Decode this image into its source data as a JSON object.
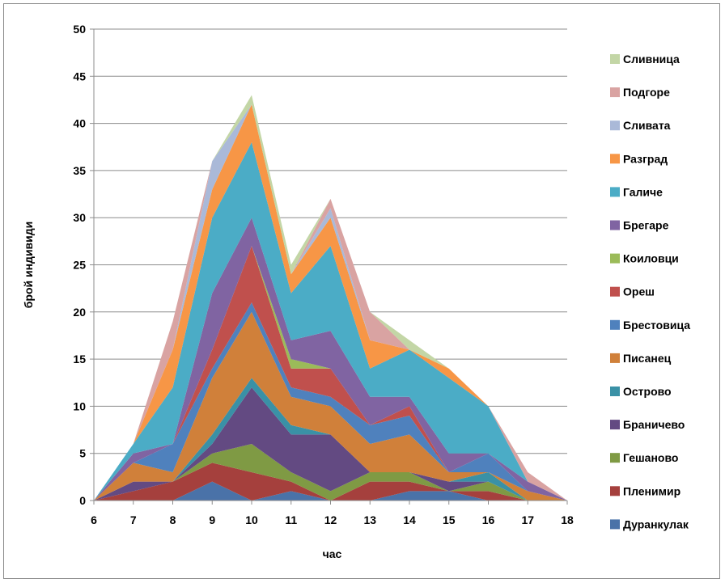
{
  "chart_data": {
    "type": "area",
    "stacked": true,
    "xlabel": "час",
    "ylabel": "брой индивиди",
    "x": [
      6,
      7,
      8,
      9,
      10,
      11,
      12,
      13,
      14,
      15,
      16,
      17,
      18
    ],
    "ylim": [
      0,
      50
    ],
    "yticks": [
      0,
      5,
      10,
      15,
      20,
      25,
      30,
      35,
      40,
      45,
      50
    ],
    "grid": "horizontal",
    "legend_position": "right",
    "series": [
      {
        "name": "Дуранкулак",
        "color": "#4a72a8",
        "values": [
          0,
          0,
          0,
          2,
          0,
          1,
          0,
          0,
          1,
          1,
          0,
          0,
          0
        ]
      },
      {
        "name": "Пленимир",
        "color": "#a5403d",
        "values": [
          0,
          1,
          2,
          2,
          3,
          1,
          0,
          2,
          1,
          0,
          1,
          0,
          0
        ]
      },
      {
        "name": "Гешаново",
        "color": "#7f9a44",
        "values": [
          0,
          0,
          0,
          1,
          3,
          1,
          1,
          1,
          1,
          0,
          1,
          0,
          0
        ]
      },
      {
        "name": "Браничево",
        "color": "#634a82",
        "values": [
          0,
          1,
          0,
          1,
          6,
          4,
          6,
          0,
          0,
          1,
          0,
          0,
          0
        ]
      },
      {
        "name": "Острово",
        "color": "#3a91a6",
        "values": [
          0,
          0,
          0,
          1,
          1,
          1,
          0,
          0,
          0,
          0,
          1,
          0,
          0
        ]
      },
      {
        "name": "Писанец",
        "color": "#d0803a",
        "values": [
          0,
          2,
          1,
          6,
          7,
          3,
          3,
          3,
          4,
          1,
          0,
          1,
          0
        ]
      },
      {
        "name": "Брестовица",
        "color": "#4f81bd",
        "values": [
          0,
          0,
          3,
          1,
          1,
          1,
          1,
          2,
          2,
          0,
          2,
          0,
          0
        ]
      },
      {
        "name": "Ореш",
        "color": "#c0504d",
        "values": [
          0,
          0,
          0,
          2,
          6,
          2,
          3,
          0,
          1,
          0,
          0,
          0,
          0
        ]
      },
      {
        "name": "Коиловци",
        "color": "#9bbb59",
        "values": [
          0,
          0,
          0,
          0,
          0,
          1,
          0,
          0,
          0,
          0,
          0,
          0,
          0
        ]
      },
      {
        "name": "Брегаре",
        "color": "#8064a2",
        "values": [
          0,
          1,
          0,
          6,
          3,
          2,
          4,
          3,
          1,
          2,
          0,
          1,
          0
        ]
      },
      {
        "name": "Галиче",
        "color": "#4bacc6",
        "values": [
          0,
          1,
          6,
          8,
          8,
          5,
          9,
          3,
          5,
          8,
          5,
          0,
          0
        ]
      },
      {
        "name": "Разград",
        "color": "#f79646",
        "values": [
          0,
          0,
          4,
          3,
          4,
          2,
          3,
          3,
          0,
          1,
          0,
          0,
          0
        ]
      },
      {
        "name": "Сливата",
        "color": "#aab9d8",
        "values": [
          0,
          0,
          0,
          3,
          0,
          0,
          1,
          0,
          0,
          0,
          0,
          0,
          0
        ]
      },
      {
        "name": "Подгоре",
        "color": "#d9a3a2",
        "values": [
          0,
          0,
          3,
          0,
          0,
          0,
          1,
          3,
          0,
          0,
          0,
          1,
          0
        ]
      },
      {
        "name": "Сливница",
        "color": "#c3d6a6",
        "values": [
          0,
          0,
          0,
          0,
          1,
          1,
          0,
          0,
          1,
          0,
          0,
          0,
          0
        ]
      }
    ]
  }
}
